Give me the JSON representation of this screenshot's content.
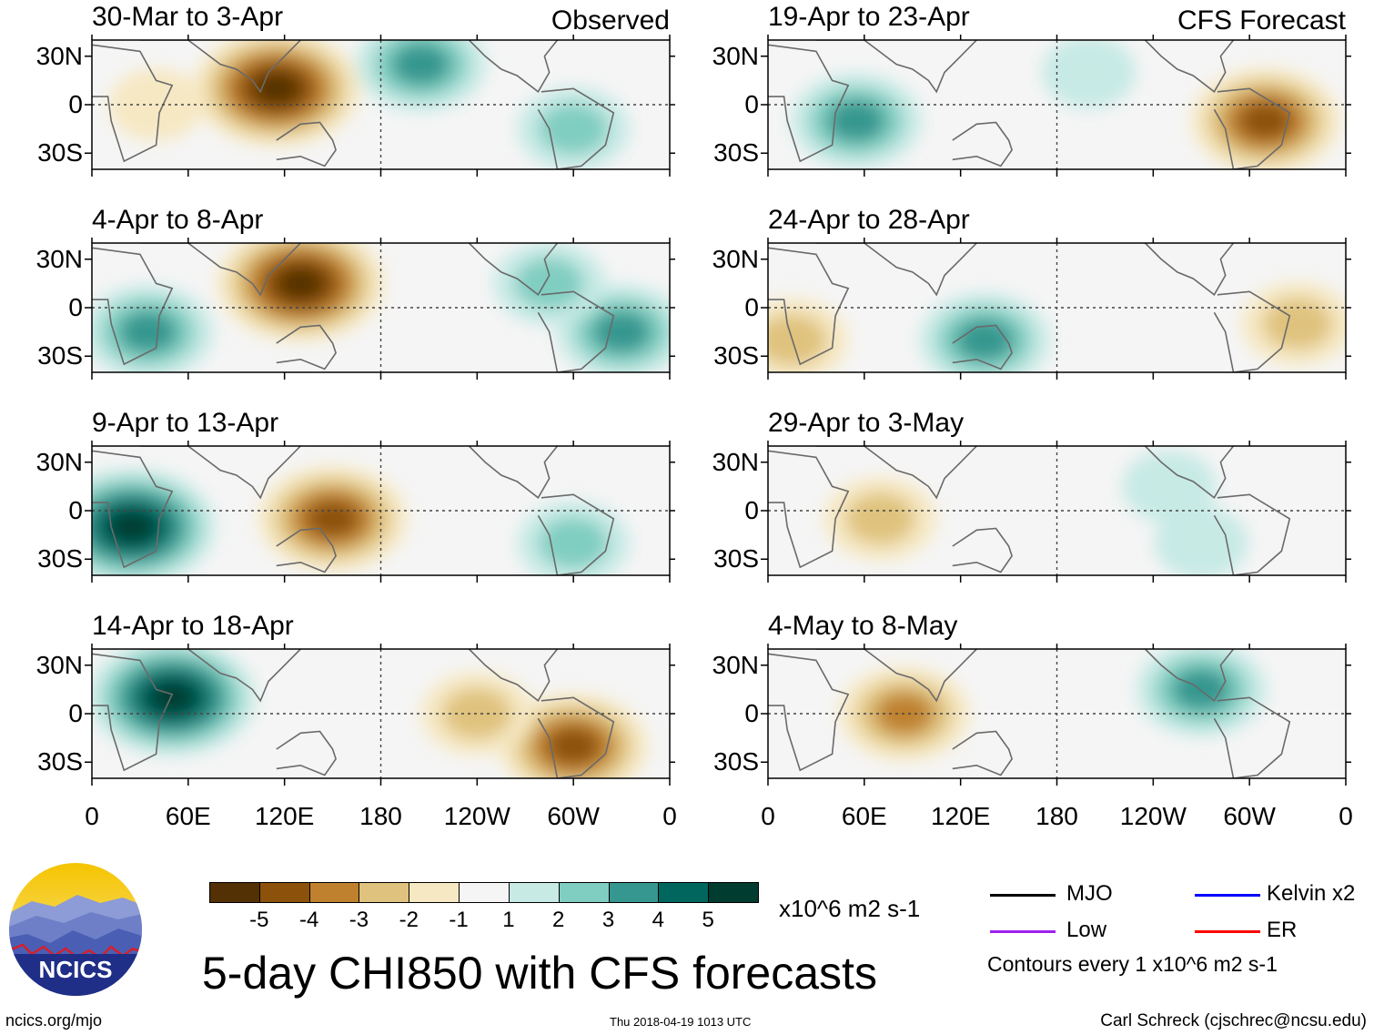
{
  "chart_data": {
    "type": "heatmap",
    "title": "5-day CHI850 with CFS forecasts",
    "variable": "CHI850 (850-hPa velocity potential) anomaly",
    "units": "x10^6 m2 s-1",
    "column_headers": {
      "left": "Observed",
      "right": "CFS Forecast"
    },
    "x_ticks": [
      "0",
      "60E",
      "120E",
      "180",
      "120W",
      "60W",
      "0"
    ],
    "y_ticks": [
      "30N",
      "0",
      "30S"
    ],
    "xlim_deg_east": [
      0,
      360
    ],
    "ylim_deg": [
      -40,
      40
    ],
    "colorbar": {
      "labels": [
        "-5",
        "-4",
        "-3",
        "-2",
        "-1",
        "1",
        "2",
        "3",
        "4",
        "5"
      ],
      "colors": [
        "#543005",
        "#8c510a",
        "#bf812d",
        "#dfc27d",
        "#f6e8c3",
        "#f5f5f5",
        "#c7eae5",
        "#80cdc1",
        "#35978f",
        "#01665e",
        "#003c30"
      ]
    },
    "legend": [
      {
        "label": "MJO",
        "color": "#000000"
      },
      {
        "label": "Kelvin x2",
        "color": "#0000ff"
      },
      {
        "label": "Low",
        "color": "#a020f0"
      },
      {
        "label": "ER",
        "color": "#ff0000"
      }
    ],
    "contour_note": "Contours every 1 x10^6 m2 s-1",
    "panels": [
      {
        "title": "30-Mar to 3-Apr",
        "corner": "Observed",
        "blobs": [
          {
            "lon": 115,
            "lat": 10,
            "v": -5
          },
          {
            "lon": 205,
            "lat": 25,
            "v": 3
          },
          {
            "lon": 300,
            "lat": -15,
            "v": 2
          },
          {
            "lon": 40,
            "lat": 0,
            "v": -1
          }
        ]
      },
      {
        "title": "4-Apr to 8-Apr",
        "corner": "",
        "blobs": [
          {
            "lon": 130,
            "lat": 15,
            "v": -5
          },
          {
            "lon": 35,
            "lat": -15,
            "v": 3
          },
          {
            "lon": 330,
            "lat": -15,
            "v": 3
          },
          {
            "lon": 285,
            "lat": 15,
            "v": 2
          }
        ]
      },
      {
        "title": "9-Apr to 13-Apr",
        "corner": "",
        "blobs": [
          {
            "lon": 25,
            "lat": -10,
            "v": 5
          },
          {
            "lon": 150,
            "lat": -5,
            "v": -4
          },
          {
            "lon": 300,
            "lat": -20,
            "v": 2
          }
        ]
      },
      {
        "title": "14-Apr to 18-Apr",
        "corner": "",
        "blobs": [
          {
            "lon": 50,
            "lat": 10,
            "v": 5
          },
          {
            "lon": 300,
            "lat": -20,
            "v": -4
          },
          {
            "lon": 240,
            "lat": 0,
            "v": -2
          }
        ]
      },
      {
        "title": "19-Apr to 23-Apr",
        "corner": "CFS Forecast",
        "blobs": [
          {
            "lon": 55,
            "lat": -10,
            "v": 3
          },
          {
            "lon": 310,
            "lat": -10,
            "v": -4
          },
          {
            "lon": 200,
            "lat": 20,
            "v": 1
          }
        ]
      },
      {
        "title": "24-Apr to 28-Apr",
        "corner": "",
        "blobs": [
          {
            "lon": 135,
            "lat": -20,
            "v": 3
          },
          {
            "lon": 15,
            "lat": -20,
            "v": -2
          },
          {
            "lon": 330,
            "lat": -10,
            "v": -2
          }
        ]
      },
      {
        "title": "29-Apr to 3-May",
        "corner": "",
        "blobs": [
          {
            "lon": 70,
            "lat": -5,
            "v": -2
          },
          {
            "lon": 250,
            "lat": 15,
            "v": 1
          },
          {
            "lon": 270,
            "lat": -20,
            "v": 1
          }
        ]
      },
      {
        "title": "4-May to 8-May",
        "corner": "",
        "blobs": [
          {
            "lon": 85,
            "lat": 0,
            "v": -3
          },
          {
            "lon": 270,
            "lat": 15,
            "v": 3
          }
        ]
      }
    ]
  },
  "logo": {
    "text": "NCICS"
  },
  "footer": {
    "site": "ncics.org/mjo",
    "timestamp": "Thu 2018-04-19 1013 UTC",
    "credit": "Carl Schreck (cjschrec@ncsu.edu)"
  }
}
